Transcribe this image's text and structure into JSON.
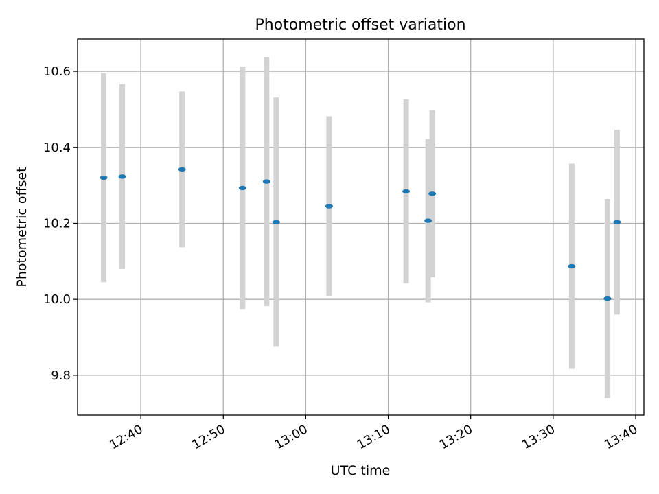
{
  "chart_data": {
    "type": "scatter",
    "title": "Photometric offset variation",
    "xlabel": "UTC time",
    "ylabel": "Photometric offset",
    "x_axis": "time (UTC)",
    "xlim": [
      "12:32:20",
      "13:41:00"
    ],
    "ylim": [
      9.695,
      10.685
    ],
    "grid": true,
    "x_ticks": [
      "12:40",
      "12:50",
      "13:00",
      "13:10",
      "13:20",
      "13:30",
      "13:40"
    ],
    "y_ticks": [
      "9.8",
      "10.0",
      "10.2",
      "10.4",
      "10.6"
    ],
    "marker_color": "#1f77b4",
    "errorbar_color": "#d3d3d3",
    "points": [
      {
        "x": "12:35:30",
        "y": 10.32,
        "err": 0.275
      },
      {
        "x": "12:37:45",
        "y": 10.323,
        "err": 0.243
      },
      {
        "x": "12:45:00",
        "y": 10.342,
        "err": 0.205
      },
      {
        "x": "12:52:20",
        "y": 10.293,
        "err": 0.32
      },
      {
        "x": "12:55:15",
        "y": 10.31,
        "err": 0.328
      },
      {
        "x": "12:56:25",
        "y": 10.203,
        "err": 0.328
      },
      {
        "x": "13:02:50",
        "y": 10.245,
        "err": 0.237
      },
      {
        "x": "13:12:10",
        "y": 10.284,
        "err": 0.242
      },
      {
        "x": "13:14:50",
        "y": 10.207,
        "err": 0.215
      },
      {
        "x": "13:15:20",
        "y": 10.278,
        "err": 0.22
      },
      {
        "x": "13:32:15",
        "y": 10.087,
        "err": 0.27
      },
      {
        "x": "13:36:35",
        "y": 10.002,
        "err": 0.262
      },
      {
        "x": "13:37:45",
        "y": 10.203,
        "err": 0.243
      }
    ]
  }
}
